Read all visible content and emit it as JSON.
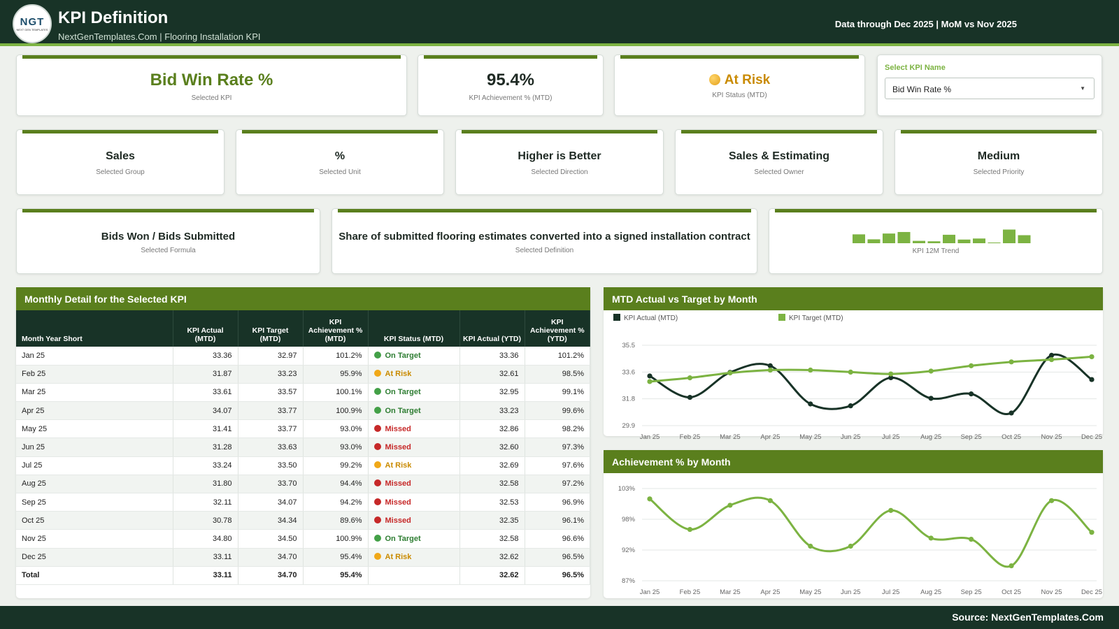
{
  "header": {
    "logo_text": "NGT",
    "logo_sub": "NEXT GEN TEMPLATES",
    "title": "KPI Definition",
    "subtitle": "NextGenTemplates.Com | Flooring Installation KPI",
    "data_through": "Data through Dec 2025 | MoM vs Nov 2025"
  },
  "kpi_cards": {
    "selected_kpi": {
      "value": "Bid Win Rate %",
      "label": "Selected KPI"
    },
    "achievement": {
      "value": "95.4%",
      "label": "KPI Achievement % (MTD)"
    },
    "status": {
      "value": "At Risk",
      "label": "KPI Status (MTD)"
    }
  },
  "selector": {
    "label": "Select KPI Name",
    "value": "Bid Win Rate %"
  },
  "attributes": [
    {
      "value": "Sales",
      "label": "Selected Group"
    },
    {
      "value": "%",
      "label": "Selected Unit"
    },
    {
      "value": "Higher is Better",
      "label": "Selected Direction"
    },
    {
      "value": "Sales & Estimating",
      "label": "Selected Owner"
    },
    {
      "value": "Medium",
      "label": "Selected Priority"
    }
  ],
  "formula": {
    "value": "Bids Won / Bids Submitted",
    "label": "Selected Formula"
  },
  "definition": {
    "value": "Share of submitted flooring estimates converted into a signed installation contract",
    "label": "Selected Definition"
  },
  "trend": {
    "label": "KPI 12M Trend",
    "values": [
      33.36,
      31.87,
      33.61,
      34.07,
      31.41,
      31.28,
      33.24,
      31.8,
      32.11,
      30.78,
      34.8,
      33.11
    ]
  },
  "table": {
    "title": "Monthly Detail for the Selected KPI",
    "headers": [
      "Month Year Short",
      "KPI Actual (MTD)",
      "KPI Target (MTD)",
      "KPI Achievement % (MTD)",
      "KPI Status (MTD)",
      "KPI Actual (YTD)",
      "KPI Achievement % (YTD)"
    ],
    "rows": [
      [
        "Jan 25",
        "33.36",
        "32.97",
        "101.2%",
        "On Target",
        "33.36",
        "101.2%"
      ],
      [
        "Feb 25",
        "31.87",
        "33.23",
        "95.9%",
        "At Risk",
        "32.61",
        "98.5%"
      ],
      [
        "Mar 25",
        "33.61",
        "33.57",
        "100.1%",
        "On Target",
        "32.95",
        "99.1%"
      ],
      [
        "Apr 25",
        "34.07",
        "33.77",
        "100.9%",
        "On Target",
        "33.23",
        "99.6%"
      ],
      [
        "May 25",
        "31.41",
        "33.77",
        "93.0%",
        "Missed",
        "32.86",
        "98.2%"
      ],
      [
        "Jun 25",
        "31.28",
        "33.63",
        "93.0%",
        "Missed",
        "32.60",
        "97.3%"
      ],
      [
        "Jul 25",
        "33.24",
        "33.50",
        "99.2%",
        "At Risk",
        "32.69",
        "97.6%"
      ],
      [
        "Aug 25",
        "31.80",
        "33.70",
        "94.4%",
        "Missed",
        "32.58",
        "97.2%"
      ],
      [
        "Sep 25",
        "32.11",
        "34.07",
        "94.2%",
        "Missed",
        "32.53",
        "96.9%"
      ],
      [
        "Oct 25",
        "30.78",
        "34.34",
        "89.6%",
        "Missed",
        "32.35",
        "96.1%"
      ],
      [
        "Nov 25",
        "34.80",
        "34.50",
        "100.9%",
        "On Target",
        "32.58",
        "96.6%"
      ],
      [
        "Dec 25",
        "33.11",
        "34.70",
        "95.4%",
        "At Risk",
        "32.62",
        "96.5%"
      ]
    ],
    "total": [
      "Total",
      "33.11",
      "34.70",
      "95.4%",
      "",
      "32.62",
      "96.5%"
    ],
    "status_colors": {
      "On Target": "#43a047",
      "At Risk": "#f0a818",
      "Missed": "#c62828"
    },
    "status_text_colors": {
      "On Target": "#2e7d32",
      "At Risk": "#c98a00",
      "Missed": "#c62828"
    }
  },
  "chart_data": [
    {
      "type": "line",
      "title": "MTD Actual vs Target by Month",
      "categories": [
        "Jan 25",
        "Feb 25",
        "Mar 25",
        "Apr 25",
        "May 25",
        "Jun 25",
        "Jul 25",
        "Aug 25",
        "Sep 25",
        "Oct 25",
        "Nov 25",
        "Dec 25"
      ],
      "series": [
        {
          "name": "KPI Actual (MTD)",
          "color": "#183327",
          "values": [
            33.36,
            31.87,
            33.61,
            34.07,
            31.41,
            31.28,
            33.24,
            31.8,
            32.11,
            30.78,
            34.8,
            33.11
          ]
        },
        {
          "name": "KPI Target (MTD)",
          "color": "#7cb342",
          "values": [
            32.97,
            33.23,
            33.57,
            33.77,
            33.77,
            33.63,
            33.5,
            33.7,
            34.07,
            34.34,
            34.5,
            34.7
          ]
        }
      ],
      "yticks": [
        "35.5",
        "33.6",
        "31.8",
        "29.9"
      ],
      "ylim": [
        29.9,
        35.5
      ],
      "legend": "top-left",
      "grid": true
    },
    {
      "type": "line",
      "title": "Achievement % by Month",
      "categories": [
        "Jan 25",
        "Feb 25",
        "Mar 25",
        "Apr 25",
        "May 25",
        "Jun 25",
        "Jul 25",
        "Aug 25",
        "Sep 25",
        "Oct 25",
        "Nov 25",
        "Dec 25"
      ],
      "series": [
        {
          "color": "#7cb342",
          "values": [
            101.2,
            95.9,
            100.1,
            100.9,
            93.0,
            93.0,
            99.2,
            94.4,
            94.2,
            89.6,
            100.9,
            95.4
          ]
        }
      ],
      "yticks": [
        "103%",
        "98%",
        "92%",
        "87%"
      ],
      "ylim": [
        87,
        103
      ],
      "grid": true
    }
  ],
  "footer": {
    "source": "Source: NextGenTemplates.Com"
  }
}
